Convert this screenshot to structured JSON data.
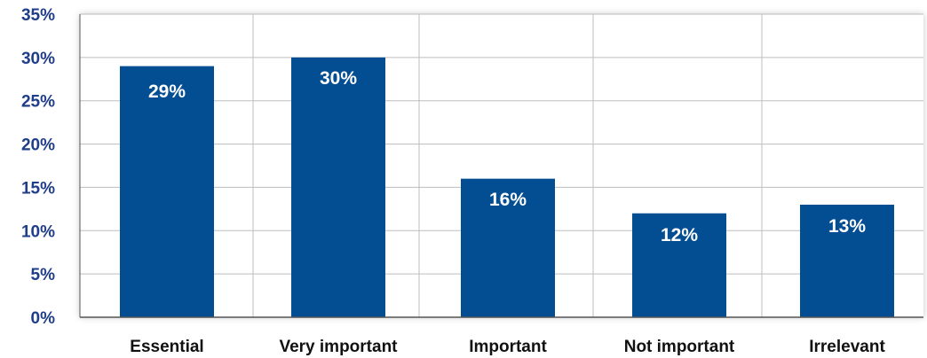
{
  "chart_data": {
    "type": "bar",
    "categories": [
      "Essential",
      "Very important",
      "Important",
      "Not important",
      "Irrelevant"
    ],
    "values": [
      29,
      30,
      16,
      12,
      13
    ],
    "data_labels": [
      "29%",
      "30%",
      "16%",
      "12%",
      "13%"
    ],
    "ylim": [
      0,
      35
    ],
    "yticks": [
      0,
      5,
      10,
      15,
      20,
      25,
      30,
      35
    ],
    "ytick_labels": [
      "0%",
      "5%",
      "10%",
      "15%",
      "20%",
      "25%",
      "30%",
      "35%"
    ],
    "title": "",
    "xlabel": "",
    "ylabel": "",
    "grid": true,
    "colors": {
      "bar": "#034d92",
      "grid": "#bdbdbd",
      "axis": "#555555",
      "ytick_text": "#1f3e8a",
      "xtick_text": "#111111",
      "data_label_text": "#ffffff"
    }
  }
}
